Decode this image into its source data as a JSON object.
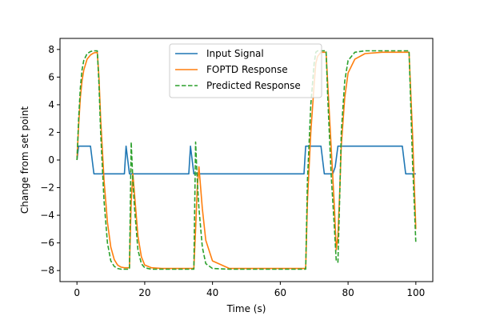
{
  "chart_data": {
    "type": "line",
    "title": "",
    "xlabel": "Time (s)",
    "ylabel": "Change from set point",
    "xlim": [
      -5,
      105
    ],
    "ylim": [
      -8.8,
      8.8
    ],
    "xticks": [
      0,
      20,
      40,
      60,
      80,
      100
    ],
    "yticks": [
      -8,
      -6,
      -4,
      -2,
      0,
      2,
      4,
      6,
      8
    ],
    "grid": false,
    "legend_position": "top-center",
    "colors": {
      "input": "#1f77b4",
      "foptd": "#ff7f0e",
      "predicted": "#2ca02c"
    },
    "series": [
      {
        "name": "Input Signal",
        "style": "solid",
        "x": [
          0,
          0.5,
          4,
          5,
          14,
          14.5,
          15.5,
          16,
          33,
          33.5,
          34.5,
          35,
          67,
          67.5,
          72,
          73,
          75,
          75.5,
          76.2,
          77,
          96,
          97,
          100
        ],
        "y": [
          0,
          1,
          1,
          -1,
          -1,
          1,
          -1,
          -1,
          -1,
          1,
          -1,
          -1,
          -1,
          1,
          1,
          -1,
          -1,
          -1,
          -0.5,
          1,
          1,
          -1,
          -1
        ]
      },
      {
        "name": "FOPTD Response",
        "style": "solid",
        "x": [
          0,
          0.5,
          1,
          1.5,
          2,
          3,
          4,
          5,
          6,
          6.5,
          7,
          8,
          9,
          10,
          11,
          12,
          13,
          14,
          15,
          15.5,
          16,
          16.5,
          17,
          18,
          19,
          20,
          22,
          25,
          30,
          34.5,
          35,
          35.5,
          36,
          37,
          38,
          40,
          45,
          67.5,
          68,
          69,
          70,
          70.5,
          71,
          72,
          73.5,
          74,
          75,
          76,
          76.5,
          77,
          77.5,
          78,
          79,
          80,
          82,
          85,
          90,
          98,
          99,
          100
        ],
        "y": [
          0,
          2.5,
          4.5,
          5.7,
          6.5,
          7.3,
          7.6,
          7.75,
          7.8,
          6,
          3,
          -1.5,
          -4.5,
          -6.3,
          -7.2,
          -7.6,
          -7.75,
          -7.8,
          -7.8,
          -7.8,
          -3,
          -1,
          -2.5,
          -5.5,
          -7,
          -7.6,
          -7.8,
          -7.85,
          -7.85,
          -7.85,
          -5,
          -2,
          -0.5,
          -3.5,
          -5.8,
          -7.3,
          -7.85,
          -7.85,
          -3,
          2,
          5.5,
          7,
          7.5,
          7.8,
          7.8,
          5.5,
          1,
          -3.5,
          -6.5,
          -5.5,
          -2.5,
          1,
          4.5,
          6.3,
          7.3,
          7.7,
          7.8,
          7.8,
          2,
          -5
        ]
      },
      {
        "name": "Predicted Response",
        "style": "dashed",
        "x": [
          0,
          0.5,
          1,
          1.5,
          2,
          3,
          4,
          5,
          6,
          6.5,
          7,
          8,
          9,
          10,
          11,
          12,
          13,
          14,
          15,
          15.5,
          16,
          16.5,
          17,
          18,
          19,
          20,
          22,
          25,
          30,
          34.5,
          35,
          35.5,
          36,
          37,
          38,
          40,
          45,
          67.5,
          68,
          69,
          70,
          70.5,
          71,
          72,
          73.5,
          74,
          75,
          76,
          76.5,
          77,
          77.5,
          78,
          79,
          80,
          82,
          85,
          90,
          98,
          99,
          100
        ],
        "y": [
          0,
          3,
          5.2,
          6.5,
          7.2,
          7.7,
          7.85,
          7.9,
          7.9,
          5.5,
          2,
          -3,
          -6,
          -7.3,
          -7.7,
          -7.85,
          -7.9,
          -7.9,
          -7.9,
          -7.9,
          1.3,
          -1.5,
          -3.5,
          -6.5,
          -7.5,
          -7.8,
          -7.9,
          -7.9,
          -7.9,
          -7.9,
          1.3,
          -1.5,
          -3.5,
          -6.3,
          -7.5,
          -7.85,
          -7.9,
          -7.9,
          -1.5,
          4,
          7,
          7.8,
          7.9,
          7.9,
          7.9,
          4.5,
          -1,
          -5,
          -7.3,
          -7.4,
          -3,
          2,
          5.7,
          7.2,
          7.8,
          7.9,
          7.9,
          7.9,
          0,
          -6
        ]
      }
    ]
  }
}
